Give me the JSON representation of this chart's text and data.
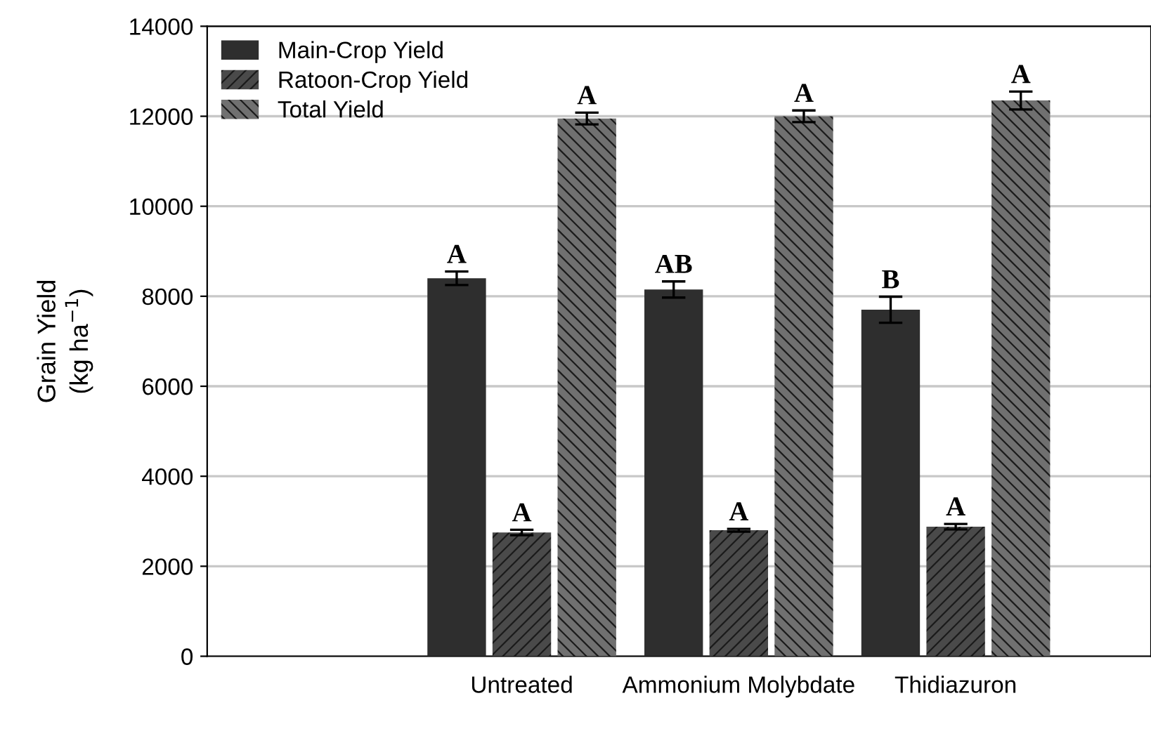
{
  "chart_data": {
    "type": "bar",
    "ylabel": "Grain Yield\n(kg ha$^{−1}$)",
    "categories": [
      "Untreated",
      "Ammonium Molybdate",
      "Thidiazuron"
    ],
    "series": [
      {
        "name": "Main-Crop Yield",
        "color": "#2e2e2e",
        "values": [
          8400,
          8150,
          7700
        ],
        "errors": [
          150,
          180,
          290
        ],
        "value_labels": [
          "A",
          "AB",
          "B"
        ]
      },
      {
        "name": "Ratoon-Crop Yield",
        "color": "#4a4a4a",
        "values": [
          2750,
          2800,
          2880
        ],
        "errors": [
          60,
          30,
          60
        ],
        "value_labels": [
          "A",
          "A",
          "A"
        ]
      },
      {
        "name": "Total Yield",
        "color": "#707070",
        "values": [
          11950,
          12000,
          12350
        ],
        "errors": [
          130,
          130,
          200
        ],
        "value_labels": [
          "A",
          "A",
          "A"
        ]
      }
    ],
    "ylim": [
      0,
      14000
    ],
    "yticks": [
      0,
      2000,
      4000,
      6000,
      8000,
      10000,
      12000,
      14000
    ],
    "grid": "y",
    "legend": "top left"
  }
}
